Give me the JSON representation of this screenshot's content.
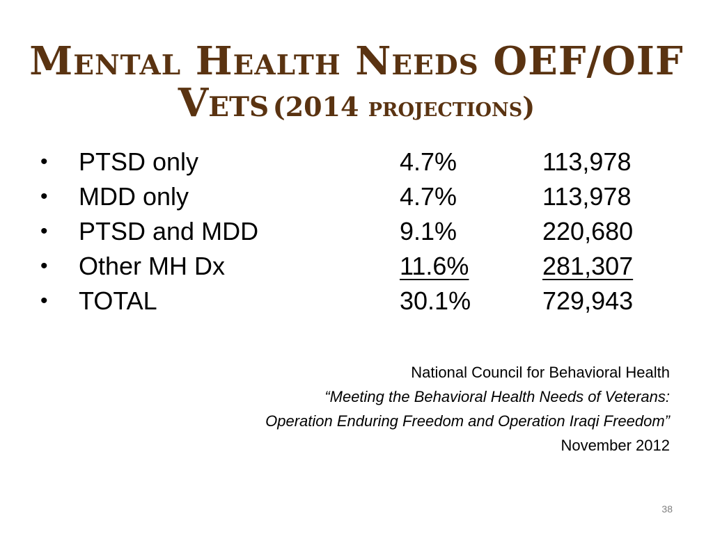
{
  "title": {
    "line1": "Mental Health Needs OEF/OIF",
    "line2_main": "Vets",
    "line2_sub": "(2014 projections)"
  },
  "rows": [
    {
      "bullet": "•",
      "label": "PTSD only",
      "percent": "4.7%",
      "count": "113,978"
    },
    {
      "bullet": "•",
      "label": "MDD only",
      "percent": "4.7%",
      "count": "113,978"
    },
    {
      "bullet": "•",
      "label": "PTSD and MDD",
      "percent": "9.1%",
      "count": "220,680"
    },
    {
      "bullet": "•",
      "label": "Other MH Dx",
      "percent": "11.6%",
      "count": "281,307"
    },
    {
      "bullet": "•",
      "label": "TOTAL",
      "percent": "30.1%",
      "count": "729,943"
    }
  ],
  "source": {
    "org": "National Council for Behavioral Health",
    "report_line1": "“Meeting the Behavioral Health Needs of Veterans:",
    "report_line2": "Operation Enduring Freedom and Operation Iraqi Freedom”",
    "date": "November 2012"
  },
  "page_number": "38",
  "colors": {
    "title": "#5a3311",
    "text": "#000000",
    "page_number": "#7f7f7f"
  }
}
